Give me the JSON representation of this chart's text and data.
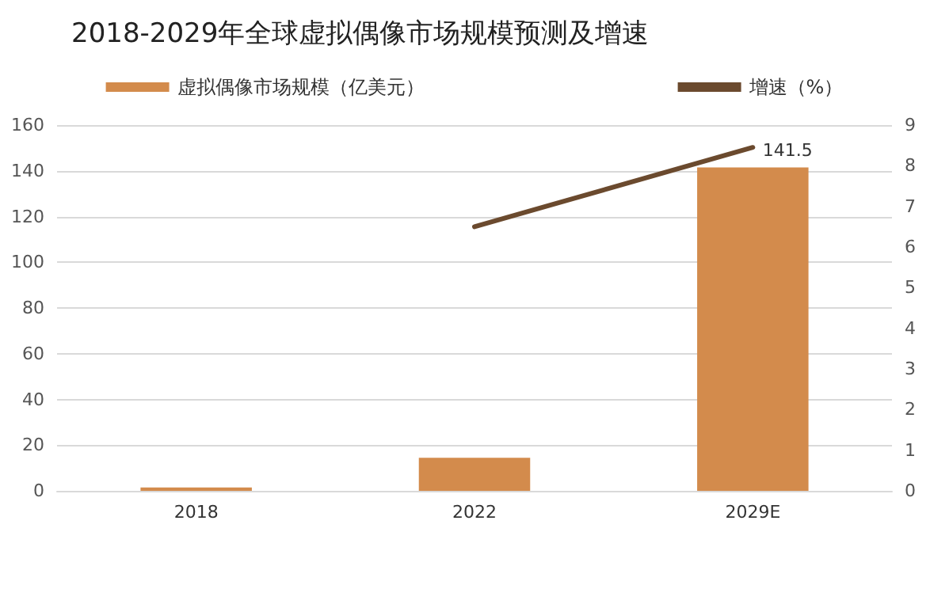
{
  "chart_data": {
    "type": "bar",
    "title": "2018-2029年全球虚拟偶像市场规模预测及增速",
    "categories": [
      "2018",
      "2022",
      "2029E"
    ],
    "series": [
      {
        "name": "虚拟偶像市场规模（亿美元）",
        "color": "#d38b4c",
        "values": [
          1.5,
          14.5,
          141.5
        ],
        "value_labels": [
          null,
          null,
          "141.5"
        ]
      },
      {
        "name": "增速（%）",
        "type": "line",
        "axis": "y2",
        "color": "#6b4a2e",
        "values": [
          null,
          6.5,
          8.45
        ],
        "marker": "none"
      }
    ],
    "ylim": [
      0,
      160
    ],
    "yticks": [
      0,
      20,
      40,
      60,
      80,
      100,
      120,
      140,
      160
    ],
    "y2lim": [
      0,
      9
    ],
    "y2ticks": [
      0,
      1,
      2,
      3,
      4,
      5,
      6,
      7,
      8,
      9
    ],
    "grid": "y",
    "legend": "top"
  }
}
